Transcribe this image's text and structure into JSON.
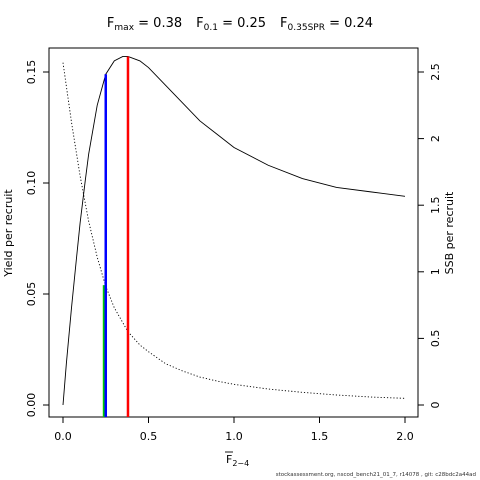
{
  "title_parts": [
    {
      "main": "F",
      "sub": "max",
      "rest": " = 0.38"
    },
    {
      "main": "F",
      "sub": "0.1",
      "rest": " = 0.25"
    },
    {
      "main": "F",
      "sub": "0.35SPR",
      "rest": " = 0.24"
    }
  ],
  "footer": "stockassessment.org, nscod_bench21_01_7, r14078 , git: c28bdc2a44ad",
  "chart_data": {
    "type": "line",
    "xlabel_main": "F",
    "xlabel_sub": "2−4",
    "ylabel_left": "Yield per recruit",
    "ylabel_right": "SSB per recruit",
    "xlim": [
      0,
      2
    ],
    "ylim_left": [
      0,
      0.16
    ],
    "ylim_right": [
      0,
      2.6
    ],
    "x_ticks": [
      0,
      0.5,
      1,
      1.5,
      2
    ],
    "x_tick_labels": [
      "0.0",
      "0.5",
      "1.0",
      "1.5",
      "2.0"
    ],
    "y_left_ticks": [
      0,
      0.05,
      0.1,
      0.15
    ],
    "y_left_tick_labels": [
      "0.00",
      "0.05",
      "0.10",
      "0.15"
    ],
    "y_right_ticks": [
      0,
      0.5,
      1,
      1.5,
      2,
      2.5
    ],
    "y_right_tick_labels": [
      "0",
      "0.5",
      "1",
      "1.5",
      "2",
      "2.5"
    ],
    "series": [
      {
        "axis": "left",
        "style": "solid",
        "color": "#000000",
        "x": [
          0,
          0.02,
          0.05,
          0.08,
          0.1,
          0.13,
          0.15,
          0.2,
          0.25,
          0.3,
          0.35,
          0.38,
          0.45,
          0.5,
          0.6,
          0.7,
          0.8,
          0.9,
          1.0,
          1.2,
          1.4,
          1.6,
          1.8,
          2.0
        ],
        "values": [
          0,
          0.019,
          0.044,
          0.067,
          0.082,
          0.101,
          0.113,
          0.135,
          0.149,
          0.155,
          0.157,
          0.157,
          0.155,
          0.152,
          0.144,
          0.136,
          0.128,
          0.122,
          0.116,
          0.108,
          0.102,
          0.098,
          0.096,
          0.094
        ]
      },
      {
        "axis": "right",
        "style": "dotted",
        "color": "#000000",
        "x": [
          0,
          0.05,
          0.1,
          0.15,
          0.2,
          0.25,
          0.3,
          0.38,
          0.45,
          0.5,
          0.6,
          0.7,
          0.8,
          0.9,
          1.0,
          1.2,
          1.4,
          1.6,
          1.8,
          2.0
        ],
        "values": [
          2.57,
          2.12,
          1.72,
          1.38,
          1.11,
          0.89,
          0.73,
          0.55,
          0.45,
          0.4,
          0.31,
          0.255,
          0.21,
          0.18,
          0.155,
          0.12,
          0.095,
          0.075,
          0.06,
          0.05
        ]
      }
    ],
    "ref_lines": [
      {
        "x": 0.24,
        "y_to": 0.054,
        "color": "#00cc00"
      },
      {
        "x": 0.25,
        "y_to": 0.149,
        "color": "#0000ff"
      },
      {
        "x": 0.38,
        "y_to": 0.157,
        "color": "#ff0000"
      }
    ],
    "grid": false,
    "legend": "none"
  }
}
